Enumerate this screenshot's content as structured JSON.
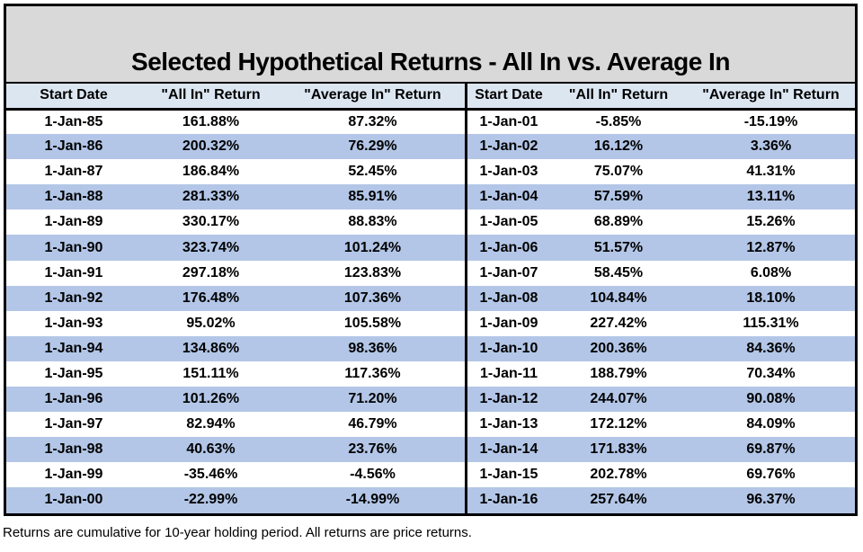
{
  "chart_data": {
    "type": "table",
    "title": "Selected Hypothetical Returns - All In vs. Average In",
    "columns": [
      "Start Date",
      "\"All In\" Return",
      "\"Average In\" Return"
    ],
    "left_rows": [
      [
        "1-Jan-85",
        "161.88%",
        "87.32%"
      ],
      [
        "1-Jan-86",
        "200.32%",
        "76.29%"
      ],
      [
        "1-Jan-87",
        "186.84%",
        "52.45%"
      ],
      [
        "1-Jan-88",
        "281.33%",
        "85.91%"
      ],
      [
        "1-Jan-89",
        "330.17%",
        "88.83%"
      ],
      [
        "1-Jan-90",
        "323.74%",
        "101.24%"
      ],
      [
        "1-Jan-91",
        "297.18%",
        "123.83%"
      ],
      [
        "1-Jan-92",
        "176.48%",
        "107.36%"
      ],
      [
        "1-Jan-93",
        "95.02%",
        "105.58%"
      ],
      [
        "1-Jan-94",
        "134.86%",
        "98.36%"
      ],
      [
        "1-Jan-95",
        "151.11%",
        "117.36%"
      ],
      [
        "1-Jan-96",
        "101.26%",
        "71.20%"
      ],
      [
        "1-Jan-97",
        "82.94%",
        "46.79%"
      ],
      [
        "1-Jan-98",
        "40.63%",
        "23.76%"
      ],
      [
        "1-Jan-99",
        "-35.46%",
        "-4.56%"
      ],
      [
        "1-Jan-00",
        "-22.99%",
        "-14.99%"
      ]
    ],
    "right_rows": [
      [
        "1-Jan-01",
        "-5.85%",
        "-15.19%"
      ],
      [
        "1-Jan-02",
        "16.12%",
        "3.36%"
      ],
      [
        "1-Jan-03",
        "75.07%",
        "41.31%"
      ],
      [
        "1-Jan-04",
        "57.59%",
        "13.11%"
      ],
      [
        "1-Jan-05",
        "68.89%",
        "15.26%"
      ],
      [
        "1-Jan-06",
        "51.57%",
        "12.87%"
      ],
      [
        "1-Jan-07",
        "58.45%",
        "6.08%"
      ],
      [
        "1-Jan-08",
        "104.84%",
        "18.10%"
      ],
      [
        "1-Jan-09",
        "227.42%",
        "115.31%"
      ],
      [
        "1-Jan-10",
        "200.36%",
        "84.36%"
      ],
      [
        "1-Jan-11",
        "188.79%",
        "70.34%"
      ],
      [
        "1-Jan-12",
        "244.07%",
        "90.08%"
      ],
      [
        "1-Jan-13",
        "172.12%",
        "84.09%"
      ],
      [
        "1-Jan-14",
        "171.83%",
        "69.87%"
      ],
      [
        "1-Jan-15",
        "202.78%",
        "69.76%"
      ],
      [
        "1-Jan-16",
        "257.64%",
        "96.37%"
      ]
    ],
    "footnote": "Returns are cumulative for 10-year holding period. All returns are price returns.",
    "layout_hints": {
      "row_stripe_color": "#b3c6e7",
      "header_bg_color": "#dce6f1",
      "title_bg_color": "#d9d9d9",
      "border_color": "#000000"
    }
  }
}
